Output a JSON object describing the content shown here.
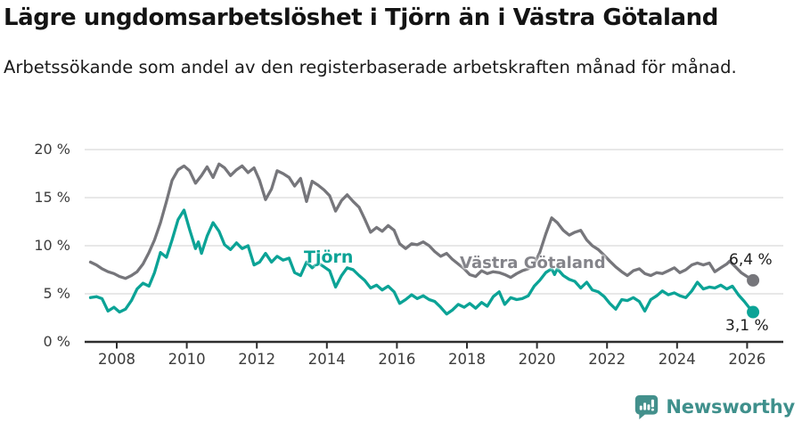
{
  "header": {
    "title": "Lägre ungdomsarbetslöshet i Tjörn än i Västra Götaland",
    "subtitle": "Arbetssökande som andel av den registerbaserade arbetskraften månad för månad."
  },
  "chart_data": {
    "type": "line",
    "grid": true,
    "x_axis": {
      "ticks": [
        2008,
        2010,
        2012,
        2014,
        2016,
        2018,
        2020,
        2022,
        2024,
        2026
      ]
    },
    "y_axis": {
      "ticks": [
        {
          "v": 20,
          "label": "20 %"
        },
        {
          "v": 15,
          "label": "15 %"
        },
        {
          "v": 10,
          "label": "10 %"
        },
        {
          "v": 5,
          "label": "5 %"
        },
        {
          "v": 0,
          "label": "0 %"
        }
      ],
      "range": [
        0,
        20
      ]
    },
    "x_range": [
      2007.25,
      2026.17
    ],
    "series": [
      {
        "name": "Västra Götaland",
        "color": "#76767b",
        "end_label": "6,4 %",
        "end_value": 6.4,
        "points": [
          [
            2007.25,
            8.3
          ],
          [
            2007.42,
            8.0
          ],
          [
            2007.58,
            7.6
          ],
          [
            2007.75,
            7.3
          ],
          [
            2007.92,
            7.1
          ],
          [
            2008.08,
            6.8
          ],
          [
            2008.25,
            6.6
          ],
          [
            2008.42,
            6.9
          ],
          [
            2008.58,
            7.3
          ],
          [
            2008.75,
            8.1
          ],
          [
            2008.92,
            9.3
          ],
          [
            2009.08,
            10.6
          ],
          [
            2009.25,
            12.4
          ],
          [
            2009.42,
            14.6
          ],
          [
            2009.58,
            16.8
          ],
          [
            2009.75,
            17.9
          ],
          [
            2009.92,
            18.3
          ],
          [
            2010.08,
            17.8
          ],
          [
            2010.25,
            16.5
          ],
          [
            2010.42,
            17.3
          ],
          [
            2010.58,
            18.2
          ],
          [
            2010.75,
            17.1
          ],
          [
            2010.92,
            18.5
          ],
          [
            2011.08,
            18.1
          ],
          [
            2011.25,
            17.3
          ],
          [
            2011.42,
            17.9
          ],
          [
            2011.58,
            18.3
          ],
          [
            2011.75,
            17.6
          ],
          [
            2011.92,
            18.1
          ],
          [
            2012.08,
            16.8
          ],
          [
            2012.25,
            14.8
          ],
          [
            2012.42,
            15.9
          ],
          [
            2012.58,
            17.8
          ],
          [
            2012.75,
            17.5
          ],
          [
            2012.92,
            17.1
          ],
          [
            2013.08,
            16.2
          ],
          [
            2013.25,
            17.0
          ],
          [
            2013.42,
            14.6
          ],
          [
            2013.58,
            16.7
          ],
          [
            2013.75,
            16.3
          ],
          [
            2013.92,
            15.8
          ],
          [
            2014.08,
            15.2
          ],
          [
            2014.25,
            13.6
          ],
          [
            2014.42,
            14.7
          ],
          [
            2014.58,
            15.3
          ],
          [
            2014.75,
            14.6
          ],
          [
            2014.92,
            14.0
          ],
          [
            2015.08,
            12.8
          ],
          [
            2015.25,
            11.4
          ],
          [
            2015.42,
            11.9
          ],
          [
            2015.58,
            11.5
          ],
          [
            2015.75,
            12.1
          ],
          [
            2015.92,
            11.6
          ],
          [
            2016.08,
            10.2
          ],
          [
            2016.25,
            9.7
          ],
          [
            2016.42,
            10.2
          ],
          [
            2016.58,
            10.1
          ],
          [
            2016.75,
            10.4
          ],
          [
            2016.92,
            10.0
          ],
          [
            2017.08,
            9.4
          ],
          [
            2017.25,
            8.9
          ],
          [
            2017.42,
            9.2
          ],
          [
            2017.58,
            8.6
          ],
          [
            2017.75,
            8.1
          ],
          [
            2017.92,
            7.6
          ],
          [
            2018.08,
            7.0
          ],
          [
            2018.25,
            6.8
          ],
          [
            2018.42,
            7.4
          ],
          [
            2018.58,
            7.1
          ],
          [
            2018.75,
            7.3
          ],
          [
            2018.92,
            7.2
          ],
          [
            2019.08,
            7.0
          ],
          [
            2019.25,
            6.7
          ],
          [
            2019.42,
            7.1
          ],
          [
            2019.58,
            7.4
          ],
          [
            2019.75,
            7.6
          ],
          [
            2019.92,
            8.1
          ],
          [
            2020.08,
            9.3
          ],
          [
            2020.25,
            11.2
          ],
          [
            2020.42,
            12.9
          ],
          [
            2020.58,
            12.4
          ],
          [
            2020.75,
            11.6
          ],
          [
            2020.92,
            11.1
          ],
          [
            2021.08,
            11.4
          ],
          [
            2021.25,
            11.6
          ],
          [
            2021.42,
            10.6
          ],
          [
            2021.58,
            10.0
          ],
          [
            2021.75,
            9.6
          ],
          [
            2021.92,
            9.0
          ],
          [
            2022.08,
            8.4
          ],
          [
            2022.25,
            7.8
          ],
          [
            2022.42,
            7.3
          ],
          [
            2022.58,
            6.9
          ],
          [
            2022.75,
            7.4
          ],
          [
            2022.92,
            7.6
          ],
          [
            2023.08,
            7.1
          ],
          [
            2023.25,
            6.9
          ],
          [
            2023.42,
            7.2
          ],
          [
            2023.58,
            7.1
          ],
          [
            2023.75,
            7.4
          ],
          [
            2023.92,
            7.7
          ],
          [
            2024.08,
            7.2
          ],
          [
            2024.25,
            7.5
          ],
          [
            2024.42,
            8.0
          ],
          [
            2024.58,
            8.2
          ],
          [
            2024.75,
            8.0
          ],
          [
            2024.92,
            8.2
          ],
          [
            2025.08,
            7.3
          ],
          [
            2025.25,
            7.7
          ],
          [
            2025.42,
            8.1
          ],
          [
            2025.5,
            8.4
          ],
          [
            2025.67,
            7.8
          ],
          [
            2025.83,
            7.2
          ],
          [
            2026.0,
            6.8
          ],
          [
            2026.17,
            6.4
          ]
        ]
      },
      {
        "name": "Tjörn",
        "color": "#0ba396",
        "end_label": "3,1 %",
        "end_value": 3.1,
        "points": [
          [
            2007.25,
            4.6
          ],
          [
            2007.42,
            4.7
          ],
          [
            2007.58,
            4.5
          ],
          [
            2007.75,
            3.2
          ],
          [
            2007.92,
            3.6
          ],
          [
            2008.08,
            3.1
          ],
          [
            2008.25,
            3.4
          ],
          [
            2008.42,
            4.3
          ],
          [
            2008.58,
            5.5
          ],
          [
            2008.75,
            6.1
          ],
          [
            2008.92,
            5.8
          ],
          [
            2009.08,
            7.2
          ],
          [
            2009.25,
            9.3
          ],
          [
            2009.42,
            8.8
          ],
          [
            2009.58,
            10.6
          ],
          [
            2009.75,
            12.7
          ],
          [
            2009.92,
            13.7
          ],
          [
            2010.08,
            11.7
          ],
          [
            2010.25,
            9.7
          ],
          [
            2010.33,
            10.4
          ],
          [
            2010.42,
            9.2
          ],
          [
            2010.58,
            11.0
          ],
          [
            2010.75,
            12.4
          ],
          [
            2010.92,
            11.5
          ],
          [
            2011.08,
            10.1
          ],
          [
            2011.25,
            9.6
          ],
          [
            2011.42,
            10.3
          ],
          [
            2011.58,
            9.7
          ],
          [
            2011.75,
            10.0
          ],
          [
            2011.92,
            8.0
          ],
          [
            2012.08,
            8.3
          ],
          [
            2012.25,
            9.2
          ],
          [
            2012.42,
            8.3
          ],
          [
            2012.58,
            8.9
          ],
          [
            2012.75,
            8.5
          ],
          [
            2012.92,
            8.7
          ],
          [
            2013.08,
            7.2
          ],
          [
            2013.25,
            6.9
          ],
          [
            2013.42,
            8.3
          ],
          [
            2013.58,
            7.7
          ],
          [
            2013.75,
            8.2
          ],
          [
            2013.92,
            7.8
          ],
          [
            2014.08,
            7.4
          ],
          [
            2014.25,
            5.7
          ],
          [
            2014.42,
            6.9
          ],
          [
            2014.58,
            7.7
          ],
          [
            2014.75,
            7.5
          ],
          [
            2014.92,
            6.9
          ],
          [
            2015.08,
            6.4
          ],
          [
            2015.25,
            5.6
          ],
          [
            2015.42,
            5.9
          ],
          [
            2015.58,
            5.4
          ],
          [
            2015.75,
            5.8
          ],
          [
            2015.92,
            5.2
          ],
          [
            2016.08,
            4.0
          ],
          [
            2016.25,
            4.4
          ],
          [
            2016.42,
            4.9
          ],
          [
            2016.58,
            4.5
          ],
          [
            2016.75,
            4.8
          ],
          [
            2016.92,
            4.4
          ],
          [
            2017.08,
            4.2
          ],
          [
            2017.25,
            3.6
          ],
          [
            2017.42,
            2.9
          ],
          [
            2017.58,
            3.3
          ],
          [
            2017.75,
            3.9
          ],
          [
            2017.92,
            3.6
          ],
          [
            2018.08,
            4.0
          ],
          [
            2018.25,
            3.5
          ],
          [
            2018.42,
            4.1
          ],
          [
            2018.58,
            3.7
          ],
          [
            2018.75,
            4.7
          ],
          [
            2018.92,
            5.2
          ],
          [
            2019.08,
            3.9
          ],
          [
            2019.25,
            4.6
          ],
          [
            2019.42,
            4.4
          ],
          [
            2019.58,
            4.5
          ],
          [
            2019.75,
            4.8
          ],
          [
            2019.92,
            5.8
          ],
          [
            2020.08,
            6.4
          ],
          [
            2020.25,
            7.2
          ],
          [
            2020.42,
            7.6
          ],
          [
            2020.5,
            7.0
          ],
          [
            2020.58,
            7.6
          ],
          [
            2020.75,
            6.9
          ],
          [
            2020.92,
            6.5
          ],
          [
            2021.08,
            6.3
          ],
          [
            2021.25,
            5.6
          ],
          [
            2021.42,
            6.2
          ],
          [
            2021.58,
            5.4
          ],
          [
            2021.75,
            5.2
          ],
          [
            2021.92,
            4.7
          ],
          [
            2022.08,
            4.0
          ],
          [
            2022.25,
            3.4
          ],
          [
            2022.42,
            4.4
          ],
          [
            2022.58,
            4.3
          ],
          [
            2022.75,
            4.6
          ],
          [
            2022.92,
            4.2
          ],
          [
            2023.08,
            3.2
          ],
          [
            2023.25,
            4.4
          ],
          [
            2023.42,
            4.8
          ],
          [
            2023.58,
            5.3
          ],
          [
            2023.75,
            4.9
          ],
          [
            2023.92,
            5.1
          ],
          [
            2024.08,
            4.8
          ],
          [
            2024.25,
            4.6
          ],
          [
            2024.42,
            5.3
          ],
          [
            2024.58,
            6.2
          ],
          [
            2024.75,
            5.5
          ],
          [
            2024.92,
            5.7
          ],
          [
            2025.08,
            5.6
          ],
          [
            2025.25,
            5.9
          ],
          [
            2025.42,
            5.5
          ],
          [
            2025.58,
            5.8
          ],
          [
            2025.75,
            4.9
          ],
          [
            2025.92,
            4.2
          ],
          [
            2026.05,
            3.6
          ],
          [
            2026.17,
            3.1
          ]
        ]
      }
    ],
    "colors": {
      "axis": "#2e2e2e",
      "gridline": "#dbdbdb",
      "tick_text": "#3c3c3c"
    }
  },
  "footer": {
    "brand": "Newsworthy",
    "brand_color": "#3f908c"
  }
}
